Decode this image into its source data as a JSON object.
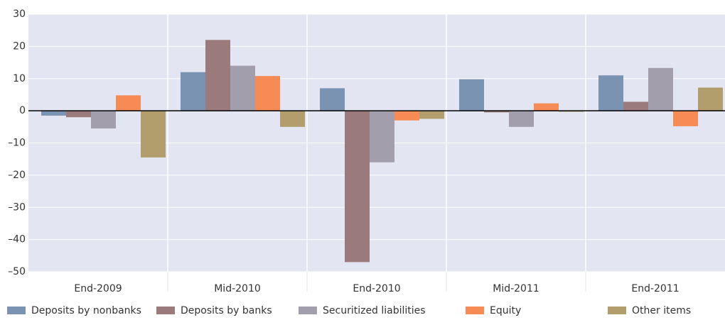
{
  "chart_data": {
    "type": "bar",
    "categories": [
      "End-2009",
      "Mid-2010",
      "End-2010",
      "Mid-2011",
      "End-2011"
    ],
    "series": [
      {
        "name": "Deposits by nonbanks",
        "color": "#7b93b3",
        "values": [
          -1.5,
          12,
          7,
          9.8,
          11
        ]
      },
      {
        "name": "Deposits by banks",
        "color": "#9b7a7b",
        "values": [
          -2,
          22,
          -47,
          -0.5,
          2.8
        ]
      },
      {
        "name": "Securitized liabilities",
        "color": "#a39eac",
        "values": [
          -5.5,
          14,
          -16,
          -5,
          13.3
        ]
      },
      {
        "name": "Equity",
        "color": "#f68b56",
        "values": [
          4.8,
          10.8,
          -3,
          2.3,
          -4.8
        ]
      },
      {
        "name": "Other items",
        "color": "#b19e6c",
        "values": [
          -14.5,
          -5,
          -2.5,
          -0.3,
          7.2
        ]
      }
    ],
    "ylim": [
      -50,
      30
    ],
    "yticks": [
      {
        "value": -50,
        "label": "–50"
      },
      {
        "value": -40,
        "label": "–40"
      },
      {
        "value": -30,
        "label": "–30"
      },
      {
        "value": -20,
        "label": "–20"
      },
      {
        "value": -10,
        "label": "–10"
      },
      0,
      10,
      20,
      30
    ],
    "grid": true,
    "legend": "bottom"
  }
}
